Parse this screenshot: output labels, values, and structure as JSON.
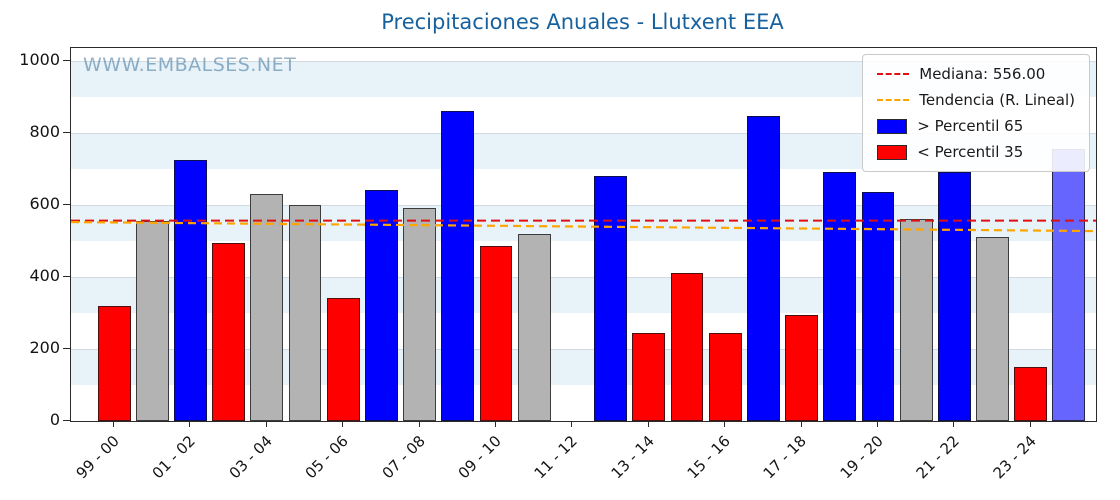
{
  "title": "Precipitaciones Anuales - Llutxent EEA",
  "watermark": "WWW.EMBALSES.NET",
  "legend": {
    "items": [
      {
        "label": "Mediana: 556.00",
        "type": "dashed-line",
        "color": "#e01010"
      },
      {
        "label": "Tendencia (R. Lineal)",
        "type": "dashed-line",
        "color": "#ffa500"
      },
      {
        "label": "> Percentil 65",
        "type": "patch",
        "color": "#0000ff"
      },
      {
        "label": "< Percentil 35",
        "type": "patch",
        "color": "#ff0000"
      }
    ]
  },
  "chart_data": {
    "type": "bar",
    "title": "Precipitaciones Anuales - Llutxent EEA",
    "xlabel": "",
    "ylabel": "",
    "ylim": [
      0,
      1035
    ],
    "yticks": [
      0,
      200,
      400,
      600,
      800,
      1000
    ],
    "x_tick_labels": [
      "99 - 00",
      "01 - 02",
      "03 - 04",
      "05 - 06",
      "07 - 08",
      "09 - 10",
      "11 - 12",
      "13 - 14",
      "15 - 16",
      "17 - 18",
      "19 - 20",
      "21 - 22",
      "23 - 24"
    ],
    "x_tick_slots": [
      0,
      2,
      4,
      6,
      8,
      10,
      12,
      14,
      16,
      18,
      20,
      22,
      24
    ],
    "num_slots": 26,
    "grid": "horizontal",
    "legend_position": "upper right",
    "median": 556.0,
    "median_color": "#e01010",
    "trend": {
      "start": 552,
      "end": 527,
      "color": "#ffa500"
    },
    "colors": {
      "above_p65": "#0000ff",
      "below_p35": "#ff0000",
      "mid": "#b3b3b3",
      "current": "#6666ff"
    },
    "bars": [
      {
        "slot": 0,
        "value": 320,
        "category": "below_p35"
      },
      {
        "slot": 1,
        "value": 555,
        "category": "mid"
      },
      {
        "slot": 2,
        "value": 725,
        "category": "above_p65"
      },
      {
        "slot": 3,
        "value": 495,
        "category": "below_p35"
      },
      {
        "slot": 4,
        "value": 630,
        "category": "mid"
      },
      {
        "slot": 5,
        "value": 600,
        "category": "mid"
      },
      {
        "slot": 6,
        "value": 340,
        "category": "below_p35"
      },
      {
        "slot": 7,
        "value": 640,
        "category": "above_p65"
      },
      {
        "slot": 8,
        "value": 590,
        "category": "mid"
      },
      {
        "slot": 9,
        "value": 860,
        "category": "above_p65"
      },
      {
        "slot": 10,
        "value": 485,
        "category": "below_p35"
      },
      {
        "slot": 11,
        "value": 520,
        "category": "mid"
      },
      {
        "slot": 13,
        "value": 680,
        "category": "above_p65"
      },
      {
        "slot": 14,
        "value": 245,
        "category": "below_p35"
      },
      {
        "slot": 15,
        "value": 410,
        "category": "below_p35"
      },
      {
        "slot": 16,
        "value": 245,
        "category": "below_p35"
      },
      {
        "slot": 17,
        "value": 845,
        "category": "above_p65"
      },
      {
        "slot": 18,
        "value": 295,
        "category": "below_p35"
      },
      {
        "slot": 19,
        "value": 690,
        "category": "above_p65"
      },
      {
        "slot": 20,
        "value": 635,
        "category": "above_p65"
      },
      {
        "slot": 21,
        "value": 560,
        "category": "mid"
      },
      {
        "slot": 22,
        "value": 690,
        "category": "above_p65"
      },
      {
        "slot": 23,
        "value": 510,
        "category": "mid"
      },
      {
        "slot": 24,
        "value": 150,
        "category": "below_p35"
      },
      {
        "slot": 25,
        "value": 755,
        "category": "current"
      }
    ]
  }
}
